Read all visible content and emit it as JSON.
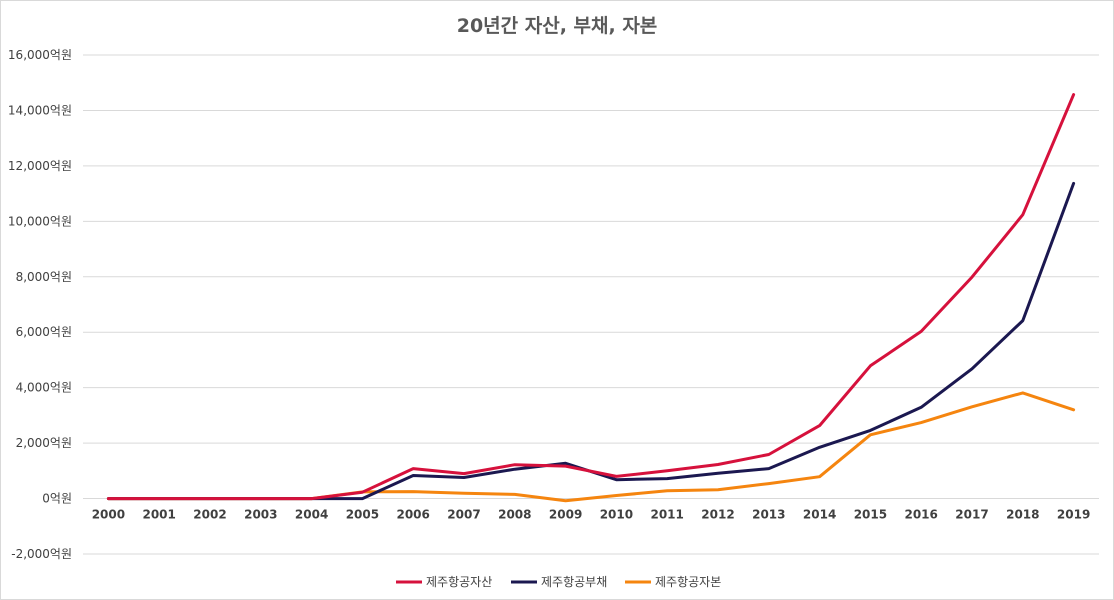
{
  "chart_data": {
    "type": "line",
    "title": "20년간 자산, 부채, 자본",
    "categories": [
      "2000",
      "2001",
      "2002",
      "2003",
      "2004",
      "2005",
      "2006",
      "2007",
      "2008",
      "2009",
      "2010",
      "2011",
      "2012",
      "2013",
      "2014",
      "2015",
      "2016",
      "2017",
      "2018",
      "2019"
    ],
    "ylim": [
      -2000,
      16000
    ],
    "yticks": [
      -2000,
      0,
      2000,
      4000,
      6000,
      8000,
      10000,
      12000,
      14000,
      16000
    ],
    "ytick_labels": [
      "-2,000억원",
      "0억원",
      "2,000억원",
      "4,000억원",
      "6,000억원",
      "8,000억원",
      "10,000억원",
      "12,000억원",
      "14,000억원",
      "16,000억원"
    ],
    "grid": true,
    "legend_position": "bottom",
    "series": [
      {
        "name": "제주항공자산",
        "color": "#d6113c",
        "values": [
          0,
          0,
          0,
          0,
          0,
          230,
          1080,
          900,
          1220,
          1170,
          800,
          1000,
          1230,
          1590,
          2630,
          4790,
          6030,
          7990,
          10240,
          14570
        ]
      },
      {
        "name": "제주항공부채",
        "color": "#1b1850",
        "values": [
          0,
          0,
          0,
          0,
          0,
          0,
          830,
          760,
          1060,
          1270,
          680,
          720,
          910,
          1080,
          1850,
          2460,
          3290,
          4680,
          6420,
          11370
        ]
      },
      {
        "name": "제주항공자본",
        "color": "#f5850f",
        "values": [
          0,
          0,
          0,
          0,
          0,
          240,
          250,
          190,
          150,
          -80,
          110,
          280,
          320,
          540,
          790,
          2300,
          2740,
          3310,
          3810,
          3200
        ]
      }
    ]
  }
}
